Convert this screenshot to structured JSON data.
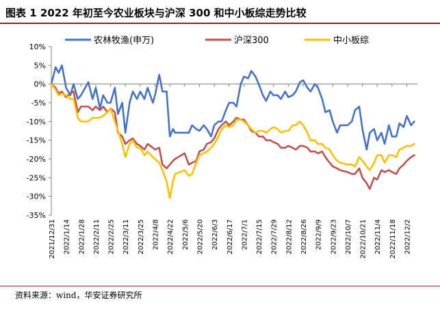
{
  "header": {
    "title": "图表 1 2022 年初至今农业板块与沪深 300 和中小板综走势比较"
  },
  "footer": {
    "source": "资料来源：wind，华安证券研究所"
  },
  "chart_data": {
    "type": "line",
    "title": "",
    "xlabel": "",
    "ylabel": "",
    "ylim": [
      -35,
      10
    ],
    "grid": false,
    "legend_position": "top",
    "y_ticks": [
      "10%",
      "5%",
      "0%",
      "-5%",
      "-10%",
      "-15%",
      "-20%",
      "-25%",
      "-30%",
      "-35%"
    ],
    "x_tick_labels": [
      "2021/12/31",
      "2022/1/14",
      "2022/1/28",
      "2022/2/11",
      "2022/2/25",
      "2022/3/11",
      "2022/3/25",
      "2022/4/8",
      "2022/4/22",
      "2022/5/6",
      "2022/5/20",
      "2022/6/3",
      "2022/6/17",
      "2022/7/1",
      "2022/7/15",
      "2022/7/29",
      "2022/8/12",
      "2022/8/26",
      "2022/9/9",
      "2022/9/23",
      "2022/10/7",
      "2022/10/21",
      "2022/11/4",
      "2022/11/18",
      "2022/12/2"
    ],
    "x": [
      "2021/12/31",
      "2022/1/4",
      "2022/1/7",
      "2022/1/10",
      "2022/1/14",
      "2022/1/18",
      "2022/1/21",
      "2022/1/25",
      "2022/1/28",
      "2022/2/4",
      "2022/2/8",
      "2022/2/11",
      "2022/2/15",
      "2022/2/18",
      "2022/2/22",
      "2022/2/25",
      "2022/3/1",
      "2022/3/4",
      "2022/3/8",
      "2022/3/11",
      "2022/3/15",
      "2022/3/18",
      "2022/3/22",
      "2022/3/25",
      "2022/3/29",
      "2022/4/1",
      "2022/4/6",
      "2022/4/8",
      "2022/4/12",
      "2022/4/15",
      "2022/4/19",
      "2022/4/22",
      "2022/4/25",
      "2022/4/27",
      "2022/5/6",
      "2022/5/10",
      "2022/5/13",
      "2022/5/17",
      "2022/5/20",
      "2022/5/24",
      "2022/5/27",
      "2022/5/31",
      "2022/6/3",
      "2022/6/7",
      "2022/6/10",
      "2022/6/14",
      "2022/6/17",
      "2022/6/21",
      "2022/6/24",
      "2022/6/28",
      "2022/7/1",
      "2022/7/5",
      "2022/7/8",
      "2022/7/12",
      "2022/7/15",
      "2022/7/19",
      "2022/7/22",
      "2022/7/26",
      "2022/7/29",
      "2022/8/2",
      "2022/8/5",
      "2022/8/9",
      "2022/8/12",
      "2022/8/16",
      "2022/8/19",
      "2022/8/23",
      "2022/8/26",
      "2022/8/30",
      "2022/9/2",
      "2022/9/6",
      "2022/9/9",
      "2022/9/13",
      "2022/9/16",
      "2022/9/20",
      "2022/9/23",
      "2022/9/27",
      "2022/9/30",
      "2022/10/7",
      "2022/10/11",
      "2022/10/14",
      "2022/10/18",
      "2022/10/21",
      "2022/10/25",
      "2022/10/28",
      "2022/11/1",
      "2022/11/4",
      "2022/11/8",
      "2022/11/11",
      "2022/11/15",
      "2022/11/18",
      "2022/11/22",
      "2022/11/25",
      "2022/11/29",
      "2022/12/2",
      "2022/12/6",
      "2022/12/9"
    ],
    "series": [
      {
        "name": "农林牧渔(申万)",
        "color": "#4472C4",
        "values": [
          0,
          4.5,
          3,
          5,
          -1,
          -3,
          0,
          -4,
          -3,
          0.5,
          -4,
          -1,
          -6.5,
          -3,
          -5,
          -5,
          -1,
          -8,
          -5,
          -13,
          -5,
          -2,
          -4,
          -2,
          -4,
          -1,
          -5,
          -3,
          2.5,
          -2,
          -2,
          -14,
          -12,
          -13,
          -13,
          -13,
          -11,
          -12,
          -12.5,
          -11,
          -12,
          -14,
          -11,
          -10,
          -10,
          -7,
          -5,
          -5,
          -6,
          0,
          2,
          1.5,
          3.5,
          2,
          0,
          -3,
          -4.5,
          -2,
          -3,
          -3,
          -4,
          -2,
          -3.5,
          -3,
          -2,
          0.5,
          1,
          -1,
          -2,
          0,
          -1,
          -4,
          -7.5,
          -7,
          -10,
          -13,
          -11,
          -11,
          -10,
          -7,
          -6,
          -12,
          -17.5,
          -13,
          -12,
          -15,
          -13,
          -16,
          -11,
          -14,
          -14,
          -10.5,
          -11.5,
          -8.5,
          -11,
          -10
        ]
      },
      {
        "name": "沪深300",
        "color": "#C0504D",
        "values": [
          0,
          -1,
          -2.5,
          -2,
          -3.5,
          -2.5,
          -2,
          -7.5,
          -6,
          -6,
          -7,
          -6,
          -7,
          -6,
          -7.5,
          -6.5,
          -7.5,
          -13,
          -14,
          -16,
          -15,
          -14.5,
          -16,
          -16.5,
          -17.5,
          -16,
          -17,
          -17.5,
          -17,
          -21.5,
          -22.5,
          -21.5,
          -20.5,
          -20,
          -18.5,
          -21.5,
          -21,
          -20.5,
          -18,
          -17.5,
          -16,
          -15.5,
          -14.5,
          -12,
          -11,
          -10,
          -11,
          -10,
          -9,
          -9.5,
          -9.5,
          -11,
          -12.5,
          -13,
          -14,
          -14,
          -15,
          -15,
          -15.5,
          -16,
          -17,
          -17,
          -16.5,
          -17,
          -17.5,
          -16.5,
          -16.5,
          -17,
          -18,
          -18,
          -18.5,
          -18,
          -19.5,
          -21,
          -22,
          -22.5,
          -23,
          -23.5,
          -24,
          -24,
          -22.5,
          -25,
          -26.5,
          -28,
          -25,
          -25.5,
          -23,
          -23.5,
          -23,
          -23.5,
          -24,
          -22.5,
          -21.5,
          -20.5,
          -19.5,
          -19
        ]
      },
      {
        "name": "中小板综",
        "color": "#FFC000",
        "values": [
          0,
          -1.5,
          -3,
          -2.5,
          -3,
          -4,
          -4,
          -9,
          -10,
          -10,
          -9,
          -9,
          -9,
          -8.5,
          -7.5,
          -6.5,
          -10,
          -12.5,
          -16,
          -19.5,
          -16,
          -15,
          -17,
          -17,
          -19,
          -18,
          -19.5,
          -20,
          -21,
          -23,
          -26,
          -30.5,
          -26,
          -24,
          -23,
          -24.5,
          -24,
          -21,
          -19,
          -18.5,
          -18,
          -17,
          -16,
          -14,
          -12,
          -11,
          -11.5,
          -11,
          -9.5,
          -9.5,
          -10,
          -11,
          -12,
          -13,
          -12.5,
          -12.5,
          -13,
          -12,
          -11.5,
          -12,
          -13,
          -12.5,
          -12.5,
          -11,
          -11,
          -10,
          -11,
          -13,
          -15,
          -15,
          -16,
          -16,
          -17,
          -17.5,
          -19,
          -20.5,
          -21,
          -21.5,
          -21.5,
          -22,
          -19.5,
          -20.5,
          -22,
          -23,
          -21,
          -19,
          -19,
          -21,
          -19,
          -19,
          -19.5,
          -17.5,
          -17,
          -16.5,
          -16.5,
          -16
        ]
      }
    ]
  }
}
